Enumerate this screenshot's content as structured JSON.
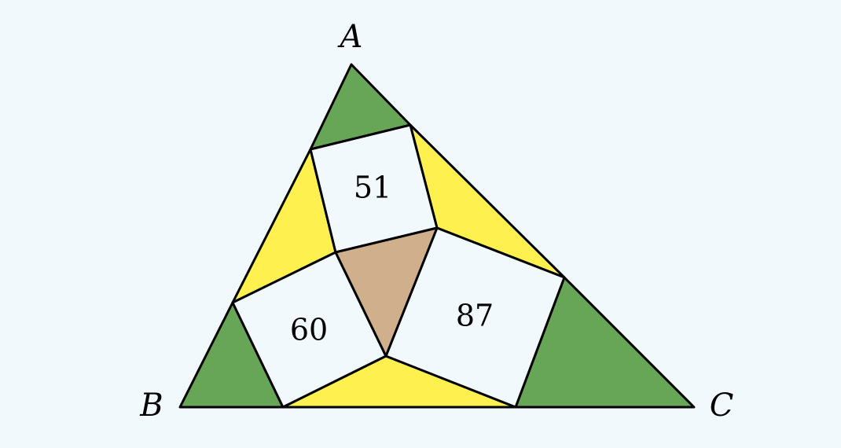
{
  "colors": {
    "background": "#f2f9fc",
    "green": "#66a656",
    "yellow": "#fdf04f",
    "tan": "#d0b08c",
    "square": "#f2f9fc"
  },
  "vertices": {
    "a": "A",
    "b": "B",
    "c": "C"
  },
  "areas": {
    "top": "51",
    "left": "60",
    "right": "87"
  }
}
